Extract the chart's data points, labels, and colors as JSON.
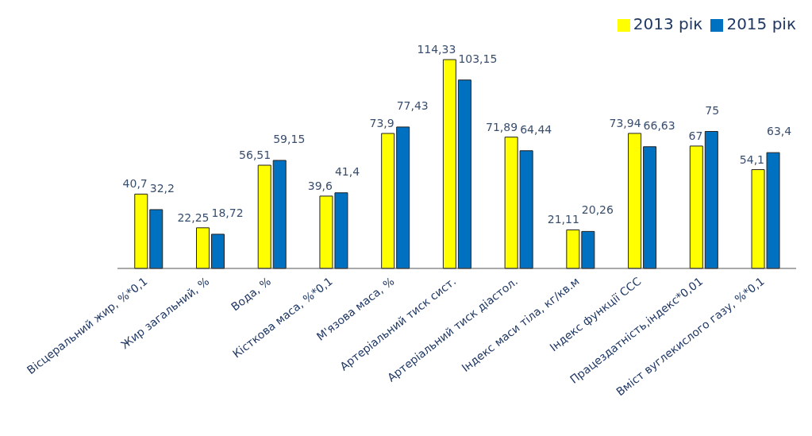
{
  "chart_data": {
    "type": "bar",
    "categories": [
      "Вісцеральний жир, %*0,1",
      "Жир загальний, %",
      "Вода, %",
      "Кісткова маса, %*0,1",
      "М'язова маса, %",
      "Артеріальний тиск сист.",
      "Артеріальний тиск діастол.",
      "Індекс маси тіла, кг/кв.м",
      "Індекс функції ССС",
      "Працездатність,індекс*0,01",
      "Вміст вуглекислого газу, %*0,1"
    ],
    "series": [
      {
        "name": "2013 рік",
        "color": "#ffff00",
        "values": [
          40.7,
          22.25,
          56.51,
          39.6,
          73.9,
          114.33,
          71.89,
          21.11,
          73.94,
          67,
          54.1
        ],
        "value_labels": [
          "40,7",
          "22,25",
          "56,51",
          "39,6",
          "73,9",
          "114,33",
          "71,89",
          "21,11",
          "73,94",
          "67",
          "54,1"
        ]
      },
      {
        "name": "2015 рік",
        "color": "#0070c0",
        "values": [
          32.2,
          18.72,
          59.15,
          41.4,
          77.43,
          103.15,
          64.44,
          20.26,
          66.63,
          75,
          63.4
        ],
        "value_labels": [
          "32,2",
          "18,72",
          "59,15",
          "41,4",
          "77,43",
          "103,15",
          "64,44",
          "20,26",
          "66,63",
          "75",
          "63,4"
        ]
      }
    ],
    "legend": "top right",
    "grid": false
  }
}
